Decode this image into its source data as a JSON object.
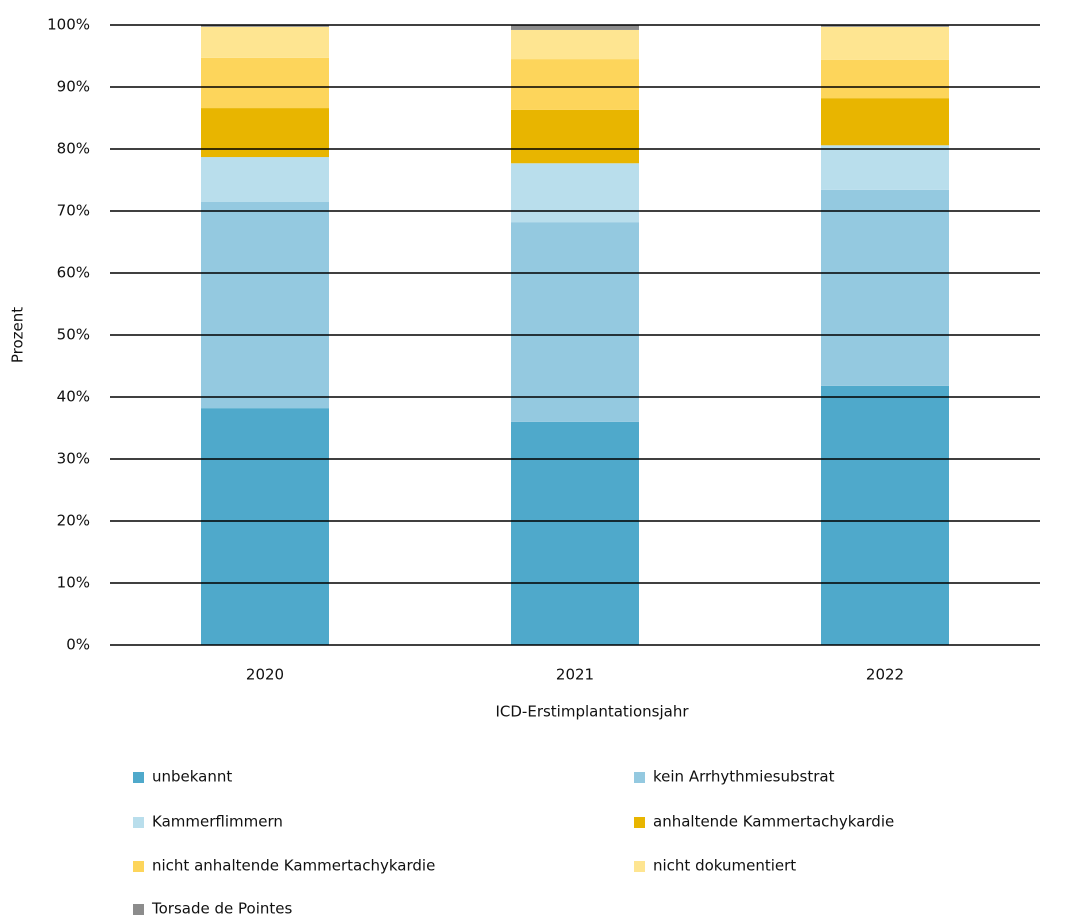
{
  "chart_data": {
    "type": "stacked_bar",
    "xlabel": "ICD-Erstimplantationsjahr",
    "ylabel": "Prozent",
    "categories": [
      "2020",
      "2021",
      "2022"
    ],
    "series": [
      {
        "name": "unbekannt",
        "color": "#4fa9cb",
        "values": [
          38.2,
          36.0,
          41.8
        ]
      },
      {
        "name": "kein Arrhythmiesubstrat",
        "color": "#94c9e0",
        "values": [
          33.3,
          32.2,
          31.6
        ]
      },
      {
        "name": "Kammerflimmern",
        "color": "#b9deec",
        "values": [
          7.2,
          9.5,
          7.2
        ]
      },
      {
        "name": "anhaltende Kammertachykardie",
        "color": "#e8b500",
        "values": [
          7.9,
          8.6,
          7.6
        ]
      },
      {
        "name": "nicht anhaltende Kammertachykardie",
        "color": "#fdd55b",
        "values": [
          8.1,
          8.2,
          6.2
        ]
      },
      {
        "name": "nicht dokumentiert",
        "color": "#fee591",
        "values": [
          5.0,
          4.7,
          5.3
        ]
      },
      {
        "name": "Torsade de Pointes",
        "color": "#8c8c8c",
        "values": [
          0.3,
          0.8,
          0.3
        ]
      }
    ],
    "ylim": [
      0,
      100
    ],
    "yticks": [
      {
        "value": 0,
        "label": "0%"
      },
      {
        "value": 10,
        "label": "10%"
      },
      {
        "value": 20,
        "label": "20%"
      },
      {
        "value": 30,
        "label": "30%"
      },
      {
        "value": 40,
        "label": "40%"
      },
      {
        "value": 50,
        "label": "50%"
      },
      {
        "value": 60,
        "label": "60%"
      },
      {
        "value": 70,
        "label": "70%"
      },
      {
        "value": 80,
        "label": "80%"
      },
      {
        "value": 90,
        "label": "90%"
      },
      {
        "value": 100,
        "label": "100%"
      }
    ],
    "grid": true
  }
}
